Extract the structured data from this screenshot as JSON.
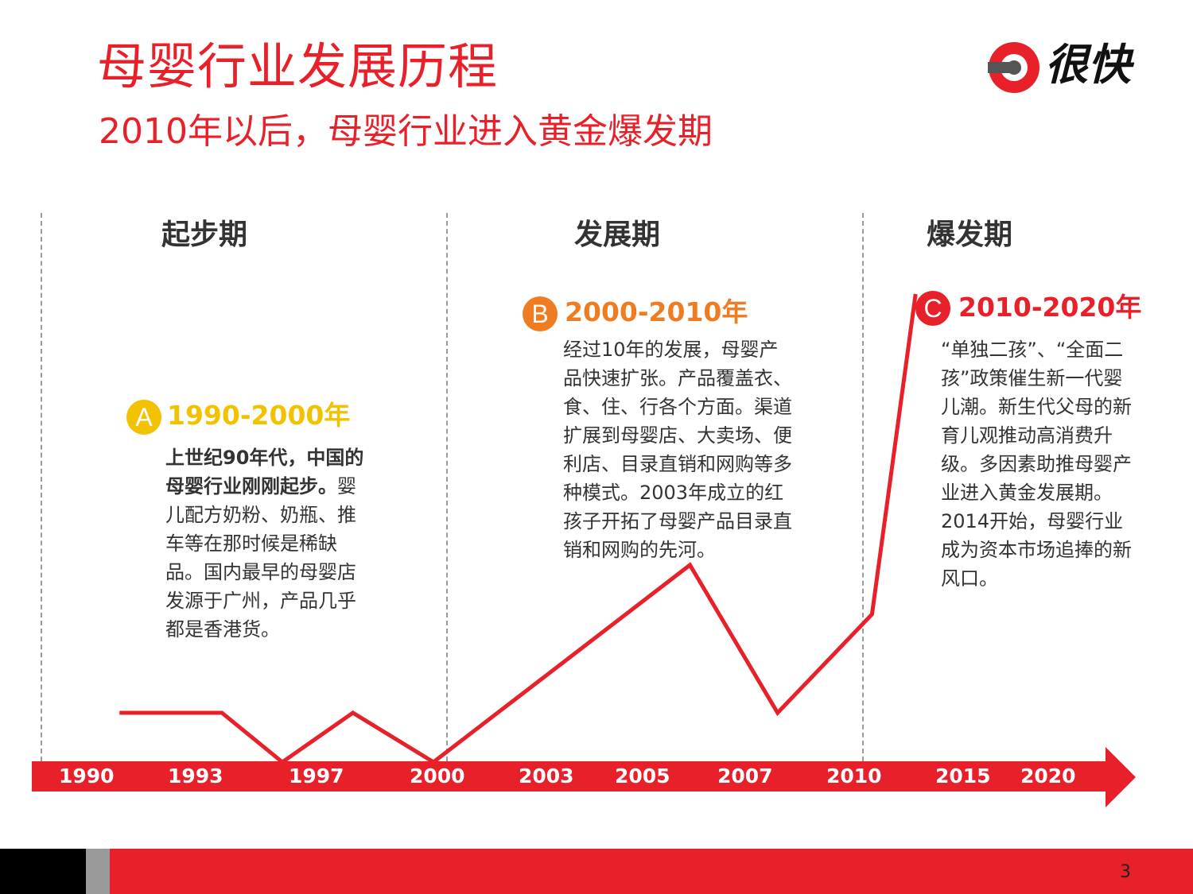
{
  "header": {
    "title": "母婴行业发展历程",
    "subtitle": "2010年以后，母婴行业进入黄金爆发期"
  },
  "logo": {
    "text": "很快"
  },
  "periods": [
    {
      "name": "起步期",
      "badge": "A",
      "range": "1990-2000年",
      "color": "#f2c200",
      "desc_bold": "上世纪90年代，中国的母婴行业刚刚起步。",
      "desc": "婴儿配方奶粉、奶瓶、推车等在那时候是稀缺品。国内最早的母婴店发源于广州，产品几乎都是香港货。"
    },
    {
      "name": "发展期",
      "badge": "B",
      "range": "2000-2010年",
      "color": "#f07c22",
      "desc_bold": "",
      "desc": "经过10年的发展，母婴产品快速扩张。产品覆盖衣、食、住、行各个方面。渠道扩展到母婴店、大卖场、便利店、目录直销和网购等多种模式。2003年成立的红孩子开拓了母婴产品目录直销和网购的先河。"
    },
    {
      "name": "爆发期",
      "badge": "C",
      "range": "2010-2020年",
      "color": "#e8202a",
      "desc_bold": "",
      "desc": "“单独二孩”、“全面二孩”政策催生新一代婴儿潮。新生代父母的新育儿观推动高消费升级。多因素助推母婴产业进入黄金发展期。2014开始，母婴行业成为资本市场追捧的新风口。"
    }
  ],
  "chart_data": {
    "type": "line",
    "title": "",
    "xlabel": "",
    "ylabel": "",
    "x_ticks": [
      "1990",
      "1993",
      "1997",
      "2000",
      "2003",
      "2005",
      "2007",
      "2010",
      "2015",
      "2020"
    ],
    "points": [
      {
        "x": 1991,
        "y": 3
      },
      {
        "x": 1994,
        "y": 3
      },
      {
        "x": 1996,
        "y": 1
      },
      {
        "x": 1998,
        "y": 3
      },
      {
        "x": 2000,
        "y": 1
      },
      {
        "x": 2006,
        "y": 9
      },
      {
        "x": 2008,
        "y": 3
      },
      {
        "x": 2011,
        "y": 7
      },
      {
        "x": 2013,
        "y": 20
      }
    ],
    "ylim": [
      0,
      20
    ],
    "line_color": "#e8202a"
  },
  "colors": {
    "accent": "#e8202a",
    "text": "#333333",
    "divider": "#9a9a9a"
  },
  "footer": {
    "page_number": "3"
  }
}
